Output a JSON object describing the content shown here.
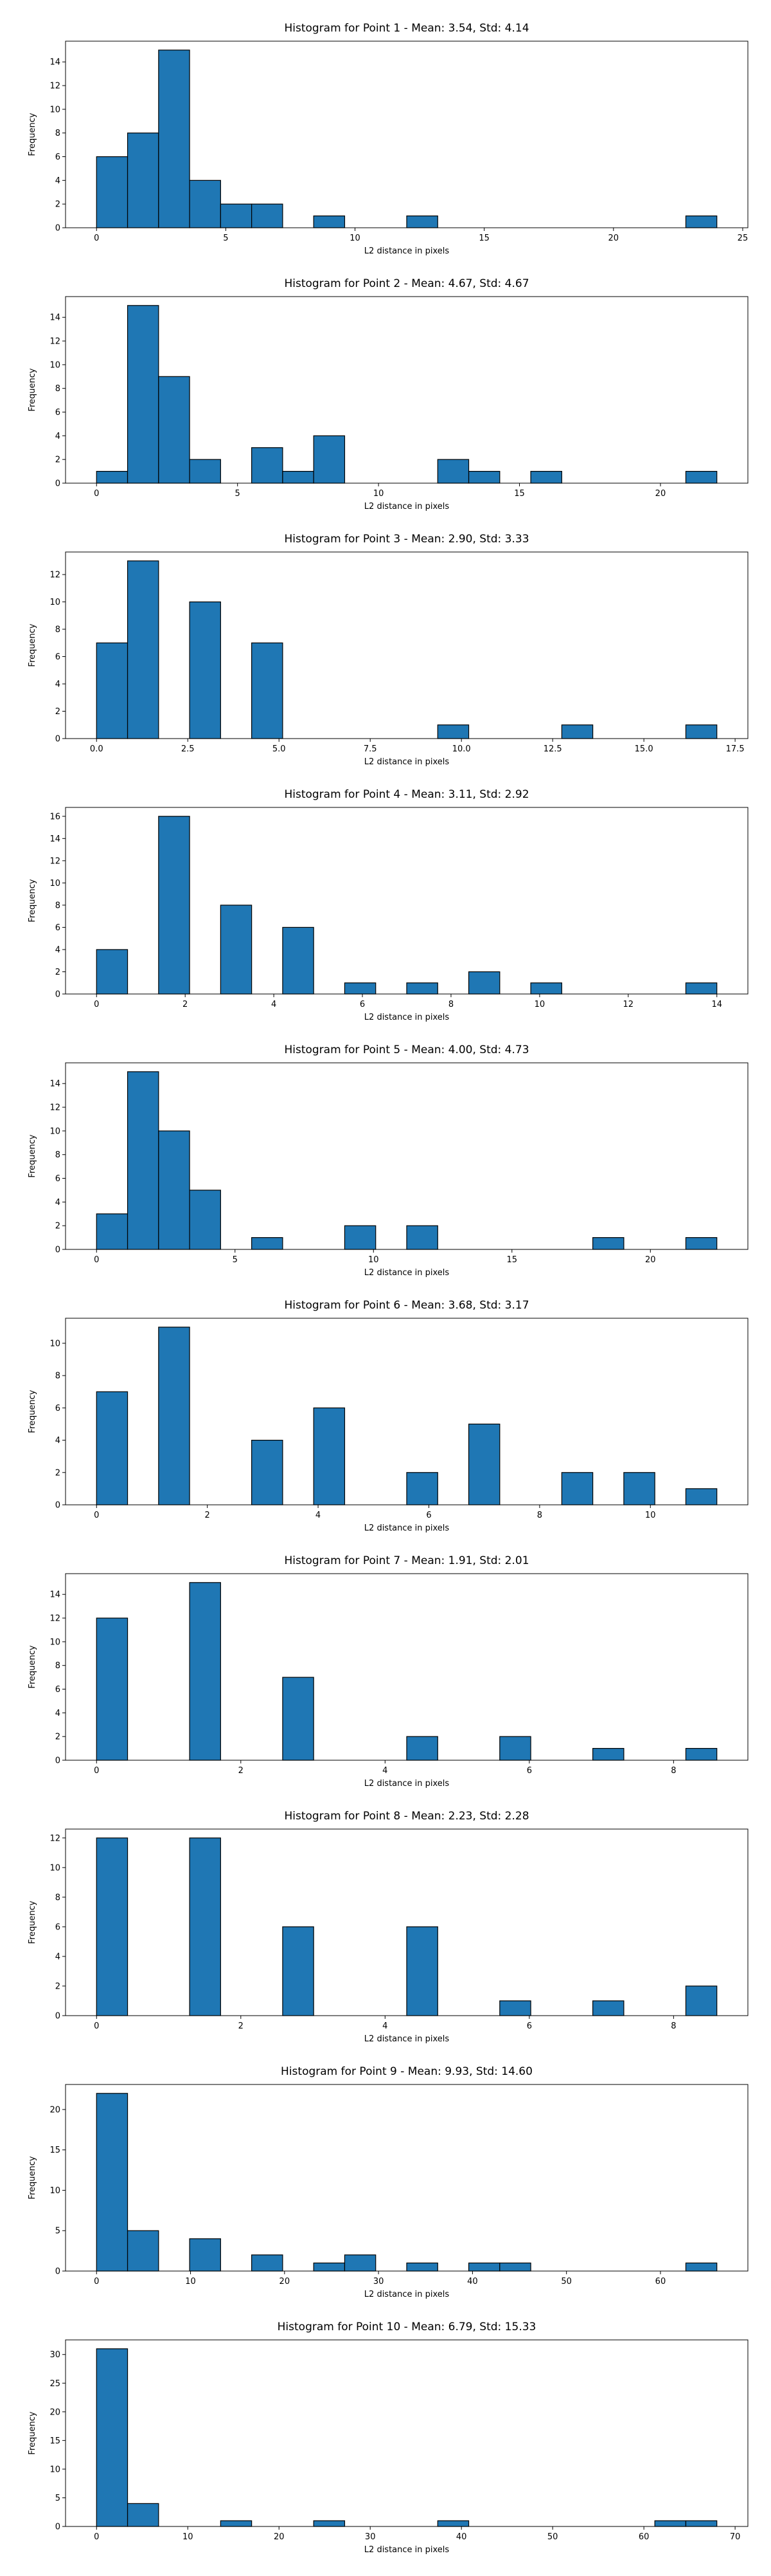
{
  "chart_data": [
    {
      "type": "bar",
      "title": "Histogram for Point 1 - Mean: 3.54, Std: 4.14",
      "xlabel": "L2 distance in pixels",
      "ylabel": "Frequency",
      "xlim": [
        -1.2,
        25.2
      ],
      "ylim": [
        0,
        15.75
      ],
      "xticks": [
        0,
        5,
        10,
        15,
        20,
        25
      ],
      "xtick_labels": [
        "0",
        "5",
        "10",
        "15",
        "20",
        "25"
      ],
      "yticks": [
        0,
        2,
        4,
        6,
        8,
        10,
        12,
        14
      ],
      "ytick_labels": [
        "0",
        "2",
        "4",
        "6",
        "8",
        "10",
        "12",
        "14"
      ],
      "bins": [
        {
          "x0": 0.0,
          "x1": 1.2,
          "count": 6
        },
        {
          "x0": 1.2,
          "x1": 2.4,
          "count": 8
        },
        {
          "x0": 2.4,
          "x1": 3.6,
          "count": 15
        },
        {
          "x0": 3.6,
          "x1": 4.8,
          "count": 4
        },
        {
          "x0": 4.8,
          "x1": 6.0,
          "count": 2
        },
        {
          "x0": 6.0,
          "x1": 7.2,
          "count": 2
        },
        {
          "x0": 8.4,
          "x1": 9.6,
          "count": 1
        },
        {
          "x0": 12.0,
          "x1": 13.2,
          "count": 1
        },
        {
          "x0": 22.8,
          "x1": 24.0,
          "count": 1
        }
      ]
    },
    {
      "type": "bar",
      "title": "Histogram for Point 2 - Mean: 4.67, Std: 4.67",
      "xlabel": "L2 distance in pixels",
      "ylabel": "Frequency",
      "xlim": [
        -1.1,
        23.1
      ],
      "ylim": [
        0,
        15.75
      ],
      "xticks": [
        0,
        5,
        10,
        15,
        20
      ],
      "xtick_labels": [
        "0",
        "5",
        "10",
        "15",
        "20"
      ],
      "yticks": [
        0,
        2,
        4,
        6,
        8,
        10,
        12,
        14
      ],
      "ytick_labels": [
        "0",
        "2",
        "4",
        "6",
        "8",
        "10",
        "12",
        "14"
      ],
      "bins": [
        {
          "x0": 0.0,
          "x1": 1.1,
          "count": 1
        },
        {
          "x0": 1.1,
          "x1": 2.2,
          "count": 15
        },
        {
          "x0": 2.2,
          "x1": 3.3,
          "count": 9
        },
        {
          "x0": 3.3,
          "x1": 4.4,
          "count": 2
        },
        {
          "x0": 5.5,
          "x1": 6.6,
          "count": 3
        },
        {
          "x0": 6.6,
          "x1": 7.7,
          "count": 1
        },
        {
          "x0": 7.7,
          "x1": 8.8,
          "count": 4
        },
        {
          "x0": 12.1,
          "x1": 13.2,
          "count": 2
        },
        {
          "x0": 13.2,
          "x1": 14.3,
          "count": 1
        },
        {
          "x0": 15.4,
          "x1": 16.5,
          "count": 1
        },
        {
          "x0": 20.9,
          "x1": 22.0,
          "count": 1
        }
      ]
    },
    {
      "type": "bar",
      "title": "Histogram for Point 3 - Mean: 2.90, Std: 3.33",
      "xlabel": "L2 distance in pixels",
      "ylabel": "Frequency",
      "xlim": [
        -0.85,
        17.85
      ],
      "ylim": [
        0,
        13.65
      ],
      "xticks": [
        0,
        2.5,
        5,
        7.5,
        10,
        12.5,
        15,
        17.5
      ],
      "xtick_labels": [
        "0.0",
        "2.5",
        "5.0",
        "7.5",
        "10.0",
        "12.5",
        "15.0",
        "17.5"
      ],
      "yticks": [
        0,
        2,
        4,
        6,
        8,
        10,
        12
      ],
      "ytick_labels": [
        "0",
        "2",
        "4",
        "6",
        "8",
        "10",
        "12"
      ],
      "bins": [
        {
          "x0": 0.0,
          "x1": 0.85,
          "count": 7
        },
        {
          "x0": 0.85,
          "x1": 1.7,
          "count": 13
        },
        {
          "x0": 2.55,
          "x1": 3.4,
          "count": 10
        },
        {
          "x0": 4.25,
          "x1": 5.1,
          "count": 7
        },
        {
          "x0": 9.35,
          "x1": 10.2,
          "count": 1
        },
        {
          "x0": 12.75,
          "x1": 13.6,
          "count": 1
        },
        {
          "x0": 16.15,
          "x1": 17.0,
          "count": 1
        }
      ]
    },
    {
      "type": "bar",
      "title": "Histogram for Point 4 - Mean: 3.11, Std: 2.92",
      "xlabel": "L2 distance in pixels",
      "ylabel": "Frequency",
      "xlim": [
        -0.7,
        14.7
      ],
      "ylim": [
        0,
        16.8
      ],
      "xticks": [
        0,
        2,
        4,
        6,
        8,
        10,
        12,
        14
      ],
      "xtick_labels": [
        "0",
        "2",
        "4",
        "6",
        "8",
        "10",
        "12",
        "14"
      ],
      "yticks": [
        0,
        2,
        4,
        6,
        8,
        10,
        12,
        14,
        16
      ],
      "ytick_labels": [
        "0",
        "2",
        "4",
        "6",
        "8",
        "10",
        "12",
        "14",
        "16"
      ],
      "bins": [
        {
          "x0": 0.0,
          "x1": 0.7,
          "count": 4
        },
        {
          "x0": 1.4,
          "x1": 2.1,
          "count": 16
        },
        {
          "x0": 2.8,
          "x1": 3.5,
          "count": 8
        },
        {
          "x0": 4.2,
          "x1": 4.9,
          "count": 6
        },
        {
          "x0": 5.6,
          "x1": 6.3,
          "count": 1
        },
        {
          "x0": 7.0,
          "x1": 7.7,
          "count": 1
        },
        {
          "x0": 8.4,
          "x1": 9.1,
          "count": 2
        },
        {
          "x0": 9.8,
          "x1": 10.5,
          "count": 1
        },
        {
          "x0": 13.3,
          "x1": 14.0,
          "count": 1
        }
      ]
    },
    {
      "type": "bar",
      "title": "Histogram for Point 5 - Mean: 4.00, Std: 4.73",
      "xlabel": "L2 distance in pixels",
      "ylabel": "Frequency",
      "xlim": [
        -1.12,
        23.52
      ],
      "ylim": [
        0,
        15.75
      ],
      "xticks": [
        0,
        5,
        10,
        15,
        20
      ],
      "xtick_labels": [
        "0",
        "5",
        "10",
        "15",
        "20"
      ],
      "yticks": [
        0,
        2,
        4,
        6,
        8,
        10,
        12,
        14
      ],
      "ytick_labels": [
        "0",
        "2",
        "4",
        "6",
        "8",
        "10",
        "12",
        "14"
      ],
      "bins": [
        {
          "x0": 0.0,
          "x1": 1.12,
          "count": 3
        },
        {
          "x0": 1.12,
          "x1": 2.24,
          "count": 15
        },
        {
          "x0": 2.24,
          "x1": 3.36,
          "count": 10
        },
        {
          "x0": 3.36,
          "x1": 4.48,
          "count": 5
        },
        {
          "x0": 5.6,
          "x1": 6.72,
          "count": 1
        },
        {
          "x0": 8.96,
          "x1": 10.08,
          "count": 2
        },
        {
          "x0": 11.2,
          "x1": 12.32,
          "count": 2
        },
        {
          "x0": 17.92,
          "x1": 19.04,
          "count": 1
        },
        {
          "x0": 21.28,
          "x1": 22.4,
          "count": 1
        }
      ]
    },
    {
      "type": "bar",
      "title": "Histogram for Point 6 - Mean: 3.68, Std: 3.17",
      "xlabel": "L2 distance in pixels",
      "ylabel": "Frequency",
      "xlim": [
        -0.56,
        11.76
      ],
      "ylim": [
        0,
        11.55
      ],
      "xticks": [
        0,
        2,
        4,
        6,
        8,
        10
      ],
      "xtick_labels": [
        "0",
        "2",
        "4",
        "6",
        "8",
        "10"
      ],
      "yticks": [
        0,
        2,
        4,
        6,
        8,
        10
      ],
      "ytick_labels": [
        "0",
        "2",
        "4",
        "6",
        "8",
        "10"
      ],
      "bins": [
        {
          "x0": 0.0,
          "x1": 0.56,
          "count": 7
        },
        {
          "x0": 1.12,
          "x1": 1.68,
          "count": 11
        },
        {
          "x0": 2.8,
          "x1": 3.36,
          "count": 4
        },
        {
          "x0": 3.92,
          "x1": 4.48,
          "count": 6
        },
        {
          "x0": 5.6,
          "x1": 6.16,
          "count": 2
        },
        {
          "x0": 6.72,
          "x1": 7.28,
          "count": 5
        },
        {
          "x0": 8.4,
          "x1": 8.96,
          "count": 2
        },
        {
          "x0": 9.52,
          "x1": 10.08,
          "count": 2
        },
        {
          "x0": 10.64,
          "x1": 11.2,
          "count": 1
        }
      ]
    },
    {
      "type": "bar",
      "title": "Histogram for Point 7 - Mean: 1.91, Std: 2.01",
      "xlabel": "L2 distance in pixels",
      "ylabel": "Frequency",
      "xlim": [
        -0.43,
        9.03
      ],
      "ylim": [
        0,
        15.75
      ],
      "xticks": [
        0,
        2,
        4,
        6,
        8
      ],
      "xtick_labels": [
        "0",
        "2",
        "4",
        "6",
        "8"
      ],
      "yticks": [
        0,
        2,
        4,
        6,
        8,
        10,
        12,
        14
      ],
      "ytick_labels": [
        "0",
        "2",
        "4",
        "6",
        "8",
        "10",
        "12",
        "14"
      ],
      "bins": [
        {
          "x0": 0.0,
          "x1": 0.43,
          "count": 12
        },
        {
          "x0": 1.29,
          "x1": 1.72,
          "count": 15
        },
        {
          "x0": 2.58,
          "x1": 3.01,
          "count": 7
        },
        {
          "x0": 4.3,
          "x1": 4.73,
          "count": 2
        },
        {
          "x0": 5.59,
          "x1": 6.02,
          "count": 2
        },
        {
          "x0": 6.88,
          "x1": 7.31,
          "count": 1
        },
        {
          "x0": 8.17,
          "x1": 8.6,
          "count": 1
        }
      ]
    },
    {
      "type": "bar",
      "title": "Histogram for Point 8 - Mean: 2.23, Std: 2.28",
      "xlabel": "L2 distance in pixels",
      "ylabel": "Frequency",
      "xlim": [
        -0.43,
        9.03
      ],
      "ylim": [
        0,
        12.6
      ],
      "xticks": [
        0,
        2,
        4,
        6,
        8
      ],
      "xtick_labels": [
        "0",
        "2",
        "4",
        "6",
        "8"
      ],
      "yticks": [
        0,
        2,
        4,
        6,
        8,
        10,
        12
      ],
      "ytick_labels": [
        "0",
        "2",
        "4",
        "6",
        "8",
        "10",
        "12"
      ],
      "bins": [
        {
          "x0": 0.0,
          "x1": 0.43,
          "count": 12
        },
        {
          "x0": 1.29,
          "x1": 1.72,
          "count": 12
        },
        {
          "x0": 2.58,
          "x1": 3.01,
          "count": 6
        },
        {
          "x0": 4.3,
          "x1": 4.73,
          "count": 6
        },
        {
          "x0": 5.59,
          "x1": 6.02,
          "count": 1
        },
        {
          "x0": 6.88,
          "x1": 7.31,
          "count": 1
        },
        {
          "x0": 8.17,
          "x1": 8.6,
          "count": 2
        }
      ]
    },
    {
      "type": "bar",
      "title": "Histogram for Point 9 - Mean: 9.93, Std: 14.60",
      "xlabel": "L2 distance in pixels",
      "ylabel": "Frequency",
      "xlim": [
        -3.3,
        69.3
      ],
      "ylim": [
        0,
        23.1
      ],
      "xticks": [
        0,
        10,
        20,
        30,
        40,
        50,
        60
      ],
      "xtick_labels": [
        "0",
        "10",
        "20",
        "30",
        "40",
        "50",
        "60"
      ],
      "yticks": [
        0,
        5,
        10,
        15,
        20
      ],
      "ytick_labels": [
        "0",
        "5",
        "10",
        "15",
        "20"
      ],
      "bins": [
        {
          "x0": 0.0,
          "x1": 3.3,
          "count": 22
        },
        {
          "x0": 3.3,
          "x1": 6.6,
          "count": 5
        },
        {
          "x0": 9.9,
          "x1": 13.2,
          "count": 4
        },
        {
          "x0": 16.5,
          "x1": 19.8,
          "count": 2
        },
        {
          "x0": 23.1,
          "x1": 26.4,
          "count": 1
        },
        {
          "x0": 26.4,
          "x1": 29.7,
          "count": 2
        },
        {
          "x0": 33.0,
          "x1": 36.3,
          "count": 1
        },
        {
          "x0": 39.6,
          "x1": 42.9,
          "count": 1
        },
        {
          "x0": 42.9,
          "x1": 46.2,
          "count": 1
        },
        {
          "x0": 62.7,
          "x1": 66.0,
          "count": 1
        }
      ]
    },
    {
      "type": "bar",
      "title": "Histogram for Point 10 - Mean: 6.79, Std: 15.33",
      "xlabel": "L2 distance in pixels",
      "ylabel": "Frequency",
      "xlim": [
        -3.4,
        71.4
      ],
      "ylim": [
        0,
        32.55
      ],
      "xticks": [
        0,
        10,
        20,
        30,
        40,
        50,
        60,
        70
      ],
      "xtick_labels": [
        "0",
        "10",
        "20",
        "30",
        "40",
        "50",
        "60",
        "70"
      ],
      "yticks": [
        0,
        5,
        10,
        15,
        20,
        25,
        30
      ],
      "ytick_labels": [
        "0",
        "5",
        "10",
        "15",
        "20",
        "25",
        "30"
      ],
      "bins": [
        {
          "x0": 0.0,
          "x1": 3.4,
          "count": 31
        },
        {
          "x0": 3.4,
          "x1": 6.8,
          "count": 4
        },
        {
          "x0": 13.6,
          "x1": 17.0,
          "count": 1
        },
        {
          "x0": 23.8,
          "x1": 27.2,
          "count": 1
        },
        {
          "x0": 37.4,
          "x1": 40.8,
          "count": 1
        },
        {
          "x0": 61.2,
          "x1": 64.6,
          "count": 1
        },
        {
          "x0": 64.6,
          "x1": 68.0,
          "count": 1
        }
      ]
    }
  ],
  "colors": {
    "bar_fill": "#1f77b4",
    "bar_edge": "#000000",
    "axis": "#000000",
    "text": "#000000",
    "background": "#ffffff"
  }
}
